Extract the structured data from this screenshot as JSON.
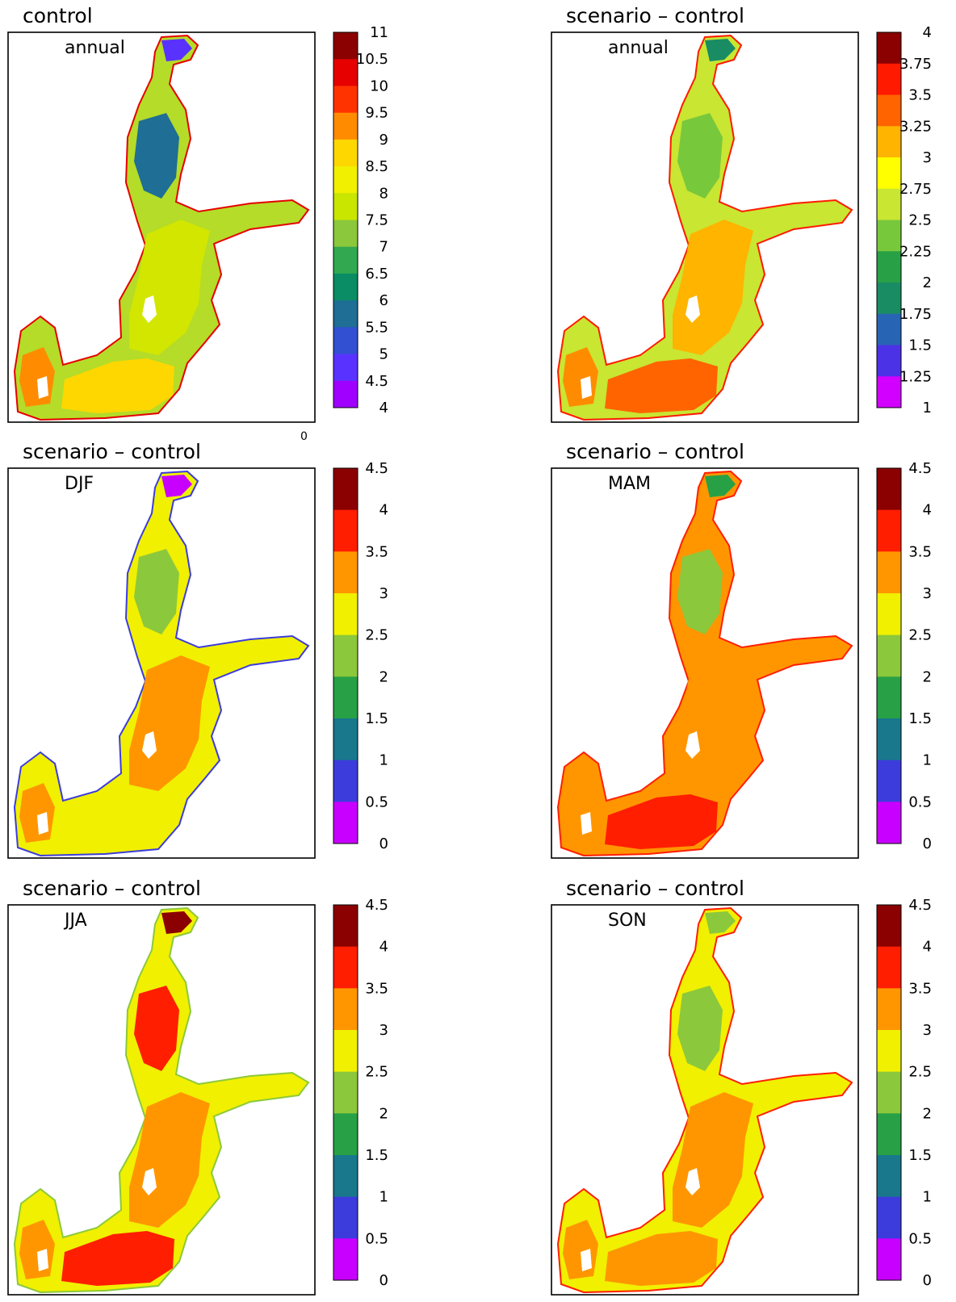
{
  "figure": {
    "stray_mark": "0",
    "panels": [
      {
        "id": "control-annual",
        "title": "control",
        "subtitle": "annual",
        "colorbar": {
          "labels": [
            "11",
            "10.5",
            "10",
            "9.5",
            "9",
            "8.5",
            "8",
            "7.5",
            "7",
            "6.5",
            "6",
            "5.5",
            "5",
            "4.5",
            "4"
          ],
          "colors": [
            "#8b0000",
            "#e60000",
            "#ff3300",
            "#ff8c00",
            "#ffd700",
            "#f0f000",
            "#c8e600",
            "#8cc83c",
            "#32a850",
            "#0a8c64",
            "#1e6e96",
            "#3250d2",
            "#5a32ff",
            "#a000ff"
          ]
        }
      },
      {
        "id": "diff-annual",
        "title": "scenario – control",
        "subtitle": "annual",
        "colorbar": {
          "labels": [
            "4",
            "3.75",
            "3.5",
            "3.25",
            "3",
            "2.75",
            "2.5",
            "2.25",
            "2",
            "1.75",
            "1.5",
            "1.25",
            "1"
          ],
          "colors": [
            "#8b0000",
            "#ff1a00",
            "#ff6400",
            "#ffb400",
            "#ffff00",
            "#c8e632",
            "#78c83c",
            "#28a046",
            "#198c64",
            "#2864b4",
            "#4b32e6",
            "#d200ff"
          ]
        }
      },
      {
        "id": "diff-djf",
        "title": "scenario – control",
        "subtitle": "DJF",
        "colorbar": {
          "labels": [
            "4.5",
            "4",
            "3.5",
            "3",
            "2.5",
            "2",
            "1.5",
            "1",
            "0.5",
            "0"
          ],
          "colors": [
            "#8b0000",
            "#ff1e00",
            "#ff9600",
            "#f0f000",
            "#8cc83c",
            "#28a046",
            "#19788c",
            "#3c3cdc",
            "#c800ff"
          ]
        }
      },
      {
        "id": "diff-mam",
        "title": "scenario – control",
        "subtitle": "MAM",
        "colorbar": {
          "labels": [
            "4.5",
            "4",
            "3.5",
            "3",
            "2.5",
            "2",
            "1.5",
            "1",
            "0.5",
            "0"
          ],
          "colors": [
            "#8b0000",
            "#ff1e00",
            "#ff9600",
            "#f0f000",
            "#8cc83c",
            "#28a046",
            "#19788c",
            "#3c3cdc",
            "#c800ff"
          ]
        }
      },
      {
        "id": "diff-jja",
        "title": "scenario – control",
        "subtitle": "JJA",
        "colorbar": {
          "labels": [
            "4.5",
            "4",
            "3.5",
            "3",
            "2.5",
            "2",
            "1.5",
            "1",
            "0.5",
            "0"
          ],
          "colors": [
            "#8b0000",
            "#ff1e00",
            "#ff9600",
            "#f0f000",
            "#8cc83c",
            "#28a046",
            "#19788c",
            "#3c3cdc",
            "#c800ff"
          ]
        }
      },
      {
        "id": "diff-son",
        "title": "scenario – control",
        "subtitle": "SON",
        "colorbar": {
          "labels": [
            "4.5",
            "4",
            "3.5",
            "3",
            "2.5",
            "2",
            "1.5",
            "1",
            "0.5",
            "0"
          ],
          "colors": [
            "#8b0000",
            "#ff1e00",
            "#ff9600",
            "#f0f000",
            "#8cc83c",
            "#28a046",
            "#19788c",
            "#3c3cdc",
            "#c800ff"
          ]
        }
      }
    ]
  },
  "map_fill": {
    "control-annual": {
      "outer": "#b4dc28",
      "north": "#1e6e96",
      "north_tip": "#5a32ff",
      "middle": "#d2e600",
      "south": "#ffd700",
      "southwest": "#ff8c00",
      "coast": "#e60000"
    },
    "diff-annual": {
      "outer": "#c8e632",
      "north": "#78c83c",
      "north_tip": "#198c64",
      "middle": "#ffb400",
      "south": "#ff6400",
      "southwest": "#ff8c00",
      "coast": "#ff1a00"
    },
    "diff-djf": {
      "outer": "#f0f000",
      "north": "#8cc83c",
      "north_tip": "#c800ff",
      "middle": "#ff9600",
      "south": "#f0f000",
      "southwest": "#ff9600",
      "coast": "#3c3cdc"
    },
    "diff-mam": {
      "outer": "#ff9600",
      "north": "#8cc83c",
      "north_tip": "#28a046",
      "middle": "#ff9600",
      "south": "#ff1e00",
      "southwest": "#ff9600",
      "coast": "#ff1e00"
    },
    "diff-jja": {
      "outer": "#f0f000",
      "north": "#ff1e00",
      "north_tip": "#8b0000",
      "middle": "#ff9600",
      "south": "#ff1e00",
      "southwest": "#ff9600",
      "coast": "#8cc83c"
    },
    "diff-son": {
      "outer": "#f0f000",
      "north": "#8cc83c",
      "north_tip": "#8cc83c",
      "middle": "#ff9600",
      "south": "#ff9600",
      "southwest": "#ff9600",
      "coast": "#ff1e00"
    }
  }
}
